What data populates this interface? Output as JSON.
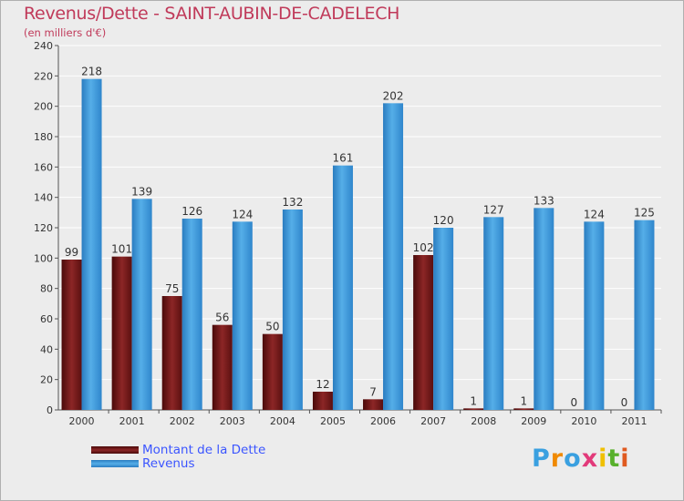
{
  "chart_data": {
    "type": "bar",
    "title": "Revenus/Dette - SAINT-AUBIN-DE-CADELECH",
    "subtitle": "(en milliers d'€)",
    "categories": [
      "2000",
      "2001",
      "2002",
      "2003",
      "2004",
      "2005",
      "2006",
      "2007",
      "2008",
      "2009",
      "2010",
      "2011"
    ],
    "series": [
      {
        "name": "Montant de la Dette",
        "color": "#7a1a1a",
        "values": [
          99,
          101,
          75,
          56,
          50,
          12,
          7,
          102,
          1,
          1,
          0,
          0
        ]
      },
      {
        "name": "Revenus",
        "color": "#3a96dc",
        "values": [
          218,
          139,
          126,
          124,
          132,
          161,
          202,
          120,
          127,
          133,
          124,
          125
        ]
      }
    ],
    "ylim": [
      0,
      240
    ],
    "yticks": [
      0,
      20,
      40,
      60,
      80,
      100,
      120,
      140,
      160,
      180,
      200,
      220,
      240
    ],
    "grid": true,
    "legend_position": "bottom-left"
  },
  "logo": {
    "letters": [
      "P",
      "r",
      "o",
      "x",
      "i",
      "t",
      "i"
    ],
    "colors": [
      "#3aa0e0",
      "#f08a00",
      "#3aa0e0",
      "#e23a7a",
      "#f0c000",
      "#58b02c",
      "#e05a20"
    ]
  }
}
